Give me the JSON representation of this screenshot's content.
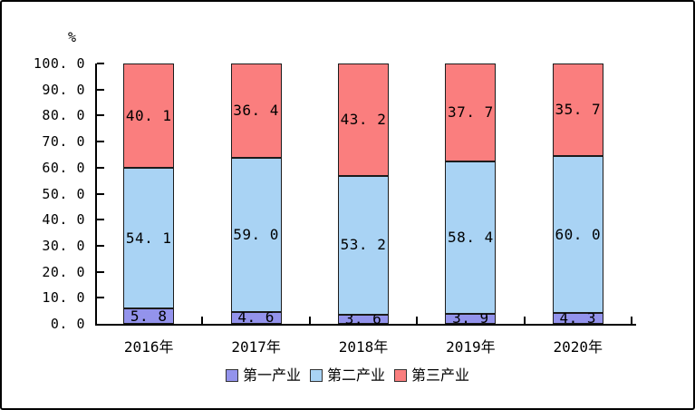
{
  "frame": {
    "background": "#ffffff",
    "border_color": "#000000"
  },
  "chart_data": {
    "type": "bar",
    "stacked": true,
    "title": "",
    "unit_label": "%",
    "categories": [
      "2016年",
      "2017年",
      "2018年",
      "2019年",
      "2020年"
    ],
    "series": [
      {
        "name": "第一产业",
        "color": "#9393ec",
        "values": [
          5.8,
          4.6,
          3.6,
          3.9,
          4.3
        ],
        "labels": [
          "5. 8",
          "4. 6",
          "3. 6",
          "3. 9",
          "4. 3"
        ]
      },
      {
        "name": "第二产业",
        "color": "#a9d3f4",
        "values": [
          54.1,
          59.0,
          53.2,
          58.4,
          60.0
        ],
        "labels": [
          "54. 1",
          "59. 0",
          "53. 2",
          "58. 4",
          "60. 0"
        ]
      },
      {
        "name": "第三产业",
        "color": "#fa7e7e",
        "values": [
          40.1,
          36.4,
          43.2,
          37.7,
          35.7
        ],
        "labels": [
          "40. 1",
          "36. 4",
          "43. 2",
          "37. 7",
          "35. 7"
        ]
      }
    ],
    "ylabel": "",
    "xlabel": "",
    "ylim": [
      0,
      100
    ],
    "yticks": [
      0,
      10,
      20,
      30,
      40,
      50,
      60,
      70,
      80,
      90,
      100
    ],
    "ytick_labels": [
      "0. 0",
      "10. 0",
      "20. 0",
      "30. 0",
      "40. 0",
      "50. 0",
      "60. 0",
      "70. 0",
      "80. 0",
      "90. 0",
      "100. 0"
    ],
    "grid": false,
    "legend_position": "bottom",
    "axis_color": "#000000",
    "bar_border_color": "#1c1c1c"
  }
}
